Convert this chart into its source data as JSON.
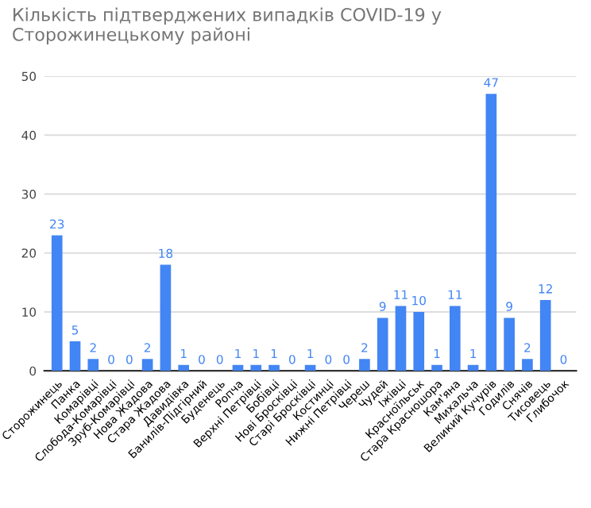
{
  "chart_data": {
    "type": "bar",
    "title": "Кількість підтверджених випадків COVID-19 у Сторожинецькому районі",
    "categories": [
      "Сторожинець",
      "Панка",
      "Комарівці",
      "Слобода-Комарівці",
      "Зруб-Комарівці",
      "Нова Жадова",
      "Стара Жадова",
      "Давидівка",
      "Банилів-Підгірний",
      "Буденець",
      "Ропча",
      "Верхні Петрівці",
      "Бобівці",
      "Нові Бросківці",
      "Старі Бросківці",
      "Костинці",
      "Нижні Петрівці",
      "Череш",
      "Чудей",
      "Іжівці",
      "Красноїльськ",
      "Стара Красношора",
      "Кам'яна",
      "Михальча",
      "Великий Кучурів",
      "Годилів",
      "Снячів",
      "Тисовець",
      "Глибочок"
    ],
    "values": [
      23,
      5,
      2,
      0,
      0,
      2,
      18,
      1,
      0,
      0,
      1,
      1,
      1,
      0,
      1,
      0,
      0,
      2,
      9,
      11,
      10,
      1,
      11,
      1,
      47,
      9,
      2,
      12,
      0
    ],
    "color": "#4285f4",
    "ylim": [
      0,
      50
    ],
    "yticks": [
      0,
      10,
      20,
      30,
      40,
      50
    ],
    "grid": "y",
    "data_labels": true
  }
}
